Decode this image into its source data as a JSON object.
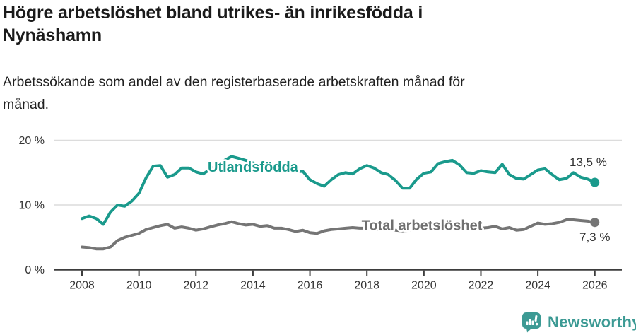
{
  "header": {
    "title_lines": [
      "Högre arbetslöshet bland utrikes- än inrikesfödda i",
      "Nynäshamn"
    ],
    "subtitle_lines": [
      "Arbetssökande som andel av den registerbaserade arbetskraften månad för",
      "månad."
    ]
  },
  "chart_data": {
    "type": "line",
    "title": "Högre arbetslöshet bland utrikes- än inrikesfödda i Nynäshamn",
    "subtitle": "Arbetssökande som andel av den registerbaserade arbetskraften månad för månad.",
    "unit": "%",
    "x_axis": {
      "tick_years": [
        2008,
        2010,
        2012,
        2014,
        2016,
        2018,
        2020,
        2022,
        2024,
        2026
      ],
      "tick_labels": [
        "2008",
        "2010",
        "2012",
        "2014",
        "2016",
        "2018",
        "2020",
        "2022",
        "2024",
        "2026"
      ],
      "range": [
        2007.05,
        2026.95
      ]
    },
    "y_axis": {
      "ticks": [
        0,
        10,
        20
      ],
      "tick_labels": [
        "0 %",
        "10 %",
        "20 %"
      ],
      "range": [
        0,
        21.5
      ],
      "gridlines": true
    },
    "x_start": 2008.0,
    "x_step_years": 0.25,
    "series": [
      {
        "name": "Total arbetslöshet",
        "color": "#757575",
        "label_color": "#6f6f6f",
        "label_anchor": {
          "year": 2019.93,
          "value": 6.9
        },
        "end_label": "7,3 %",
        "end_value": 7.3,
        "values": [
          3.5,
          3.4,
          3.2,
          3.2,
          3.5,
          4.5,
          5.0,
          5.3,
          5.6,
          6.2,
          6.5,
          6.8,
          7.0,
          6.4,
          6.6,
          6.4,
          6.1,
          6.3,
          6.6,
          6.9,
          7.1,
          7.4,
          7.1,
          6.9,
          7.0,
          6.7,
          6.8,
          6.4,
          6.4,
          6.2,
          5.9,
          6.1,
          5.7,
          5.6,
          6.0,
          6.2,
          6.3,
          6.4,
          6.5,
          6.4,
          6.4,
          6.3,
          6.2,
          6.2,
          6.1,
          6.0,
          6.1,
          6.3,
          6.4,
          6.7,
          7.0,
          7.0,
          6.9,
          6.7,
          6.5,
          6.4,
          6.4,
          6.5,
          6.7,
          6.3,
          6.5,
          6.1,
          6.2,
          6.7,
          7.2,
          7.0,
          7.1,
          7.3,
          7.7,
          7.7,
          7.6,
          7.5,
          7.3
        ]
      },
      {
        "name": "Utlandsfödda",
        "color": "#1a9a8c",
        "label_color": "#1a9a8c",
        "label_anchor": {
          "year": 2014.0,
          "value": 15.9
        },
        "end_label": "13,5 %",
        "end_value": 13.5,
        "values": [
          7.9,
          8.3,
          7.9,
          7.0,
          8.9,
          10.0,
          9.8,
          10.6,
          11.8,
          14.2,
          16.0,
          16.1,
          14.3,
          14.7,
          15.7,
          15.7,
          15.1,
          14.8,
          15.5,
          16.2,
          16.9,
          17.5,
          17.2,
          16.9,
          16.5,
          16.1,
          15.8,
          15.6,
          15.4,
          15.2,
          15.1,
          15.2,
          13.9,
          13.3,
          12.9,
          13.9,
          14.7,
          15.0,
          14.8,
          15.6,
          16.1,
          15.7,
          15.0,
          14.7,
          13.8,
          12.6,
          12.6,
          14.0,
          14.9,
          15.1,
          16.4,
          16.7,
          16.9,
          16.2,
          15.0,
          14.9,
          15.3,
          15.1,
          15.0,
          16.3,
          14.7,
          14.1,
          14.0,
          14.7,
          15.4,
          15.6,
          14.7,
          13.9,
          14.1,
          15.0,
          14.3,
          14.0,
          13.5
        ]
      }
    ],
    "colors": {
      "grid": "#dcdcdc",
      "axis": "#3d3d3d",
      "axis_text": "#333333",
      "end_label_text": "#333333"
    },
    "legend_position": "inline-labels"
  },
  "footer": {
    "brand": "Newsworthy",
    "brand_color": "#3c9a94",
    "icon": "speech-bubble-bar-chart-icon"
  }
}
